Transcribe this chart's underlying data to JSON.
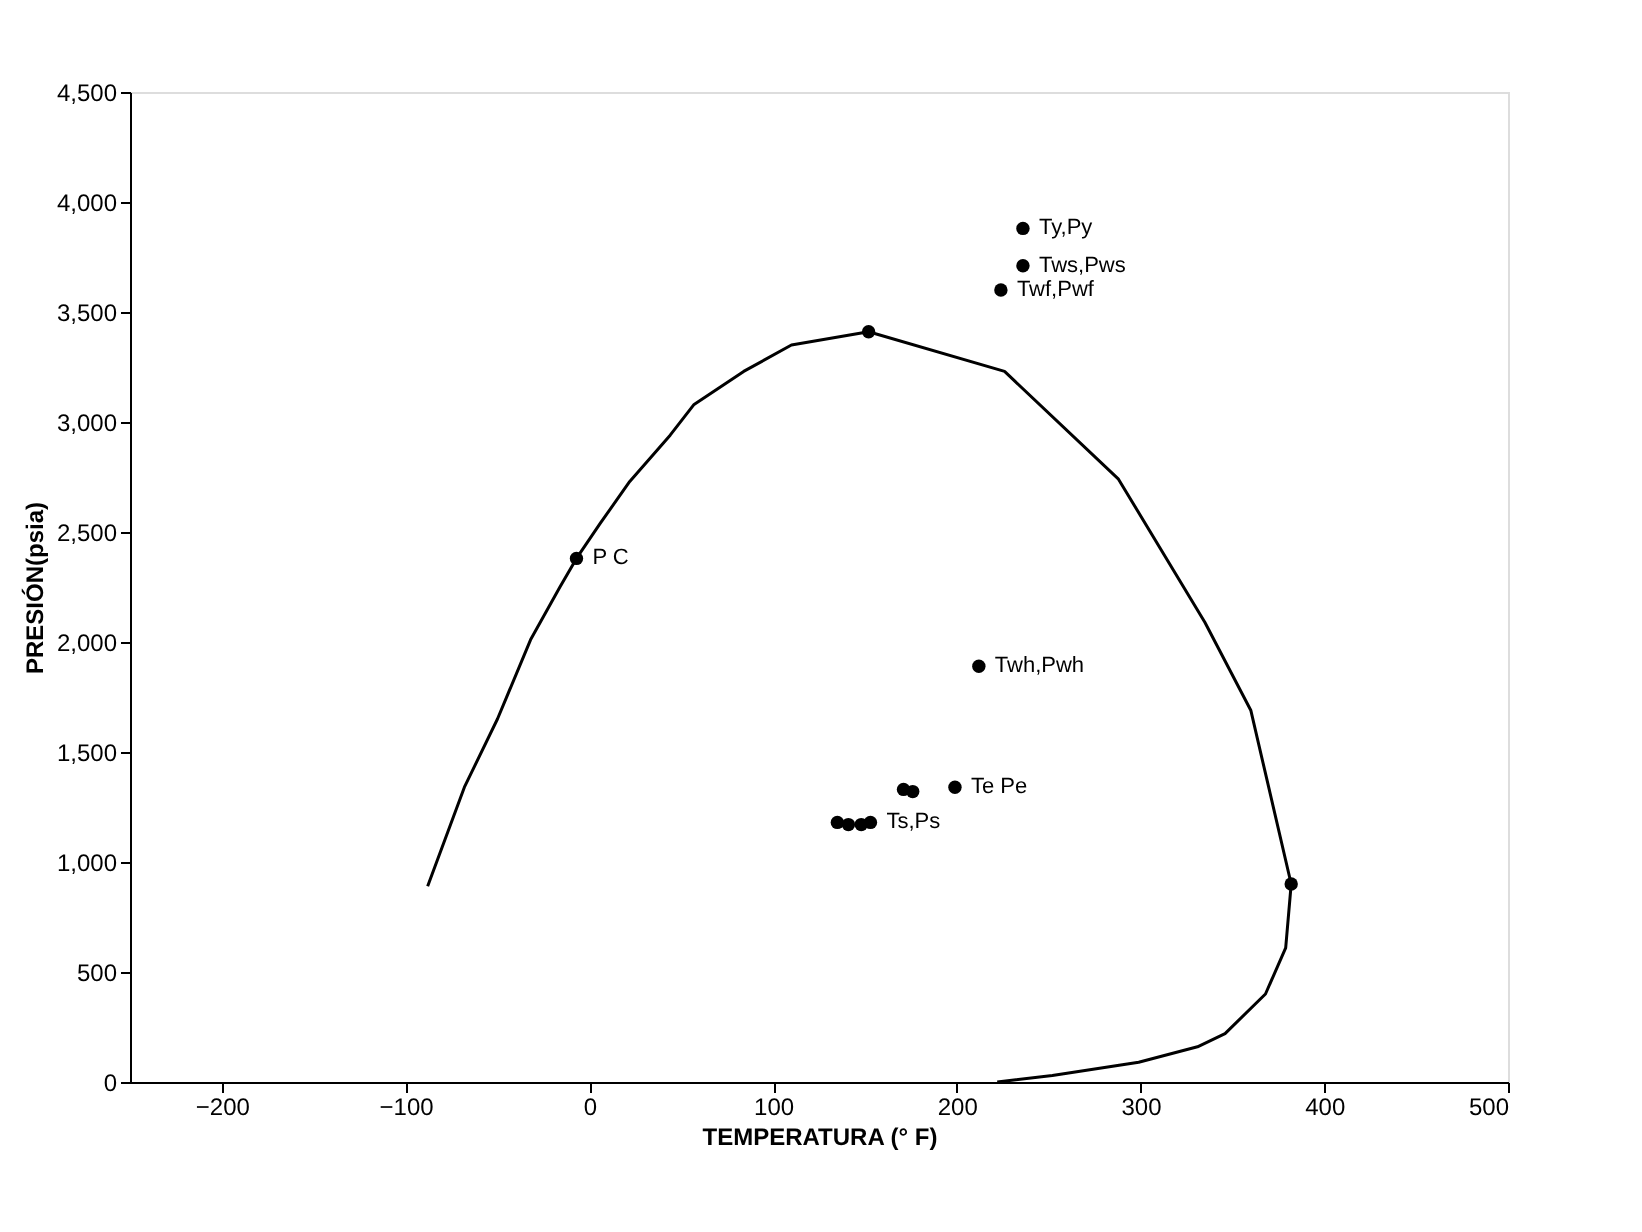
{
  "chart_data": {
    "type": "line",
    "xlabel": "TEMPERATURA (° F)",
    "ylabel": "PRESIÓN(psia)",
    "xlim": [
      -250,
      500
    ],
    "xticks": [
      -200,
      -100,
      0,
      100,
      200,
      300,
      400,
      500
    ],
    "ylim": [
      0,
      4500
    ],
    "yticks": [
      0,
      500,
      {
        "value": 1000,
        "label": "1,000"
      },
      {
        "value": 1500,
        "label": "1,500"
      },
      {
        "value": 2000,
        "label": "2,000"
      },
      {
        "value": 2500,
        "label": "2,500"
      },
      {
        "value": 3000,
        "label": "3,000"
      },
      {
        "value": 3500,
        "label": "3,500"
      },
      {
        "value": 4000,
        "label": "4,000"
      },
      {
        "value": 4500,
        "label": "4,500"
      }
    ],
    "grid": false,
    "series": [
      {
        "color": "#000000",
        "marker": "none",
        "line_style": "solid",
        "x": [
          -88,
          -68,
          -50,
          -32,
          -16,
          -7,
          6,
          22,
          44,
          57,
          84,
          110,
          152,
          226,
          288,
          335,
          360,
          382,
          379,
          368,
          346,
          331,
          299,
          252,
          222
        ],
        "values": [
          890,
          1340,
          1650,
          2010,
          2250,
          2380,
          2540,
          2730,
          2940,
          3080,
          3230,
          3350,
          3410,
          3230,
          2740,
          2090,
          1690,
          900,
          610,
          400,
          220,
          160,
          90,
          30,
          0
        ]
      },
      {
        "type": "scatter",
        "color": "#000000",
        "marker": "circle",
        "x": [
          -7,
          152,
          382,
          236,
          236,
          224,
          212,
          199,
          171,
          176,
          135,
          141,
          148,
          153
        ],
        "values": [
          2380,
          3410,
          900,
          3880,
          3710,
          3600,
          1890,
          1340,
          1330,
          1320,
          1180,
          1170,
          1170,
          1180
        ]
      }
    ],
    "annotations": [
      {
        "text": "P C",
        "x": -7,
        "y": 2380
      },
      {
        "text": "Ty,Py",
        "x": 236,
        "y": 3880
      },
      {
        "text": "Tws,Pws",
        "x": 236,
        "y": 3710
      },
      {
        "text": "Twf,Pwf",
        "x": 224,
        "y": 3600
      },
      {
        "text": "Twh,Pwh",
        "x": 212,
        "y": 1890
      },
      {
        "text": "Te Pe",
        "x": 199,
        "y": 1340
      },
      {
        "text": "Ts,Ps",
        "x": 153,
        "y": 1180
      }
    ]
  }
}
